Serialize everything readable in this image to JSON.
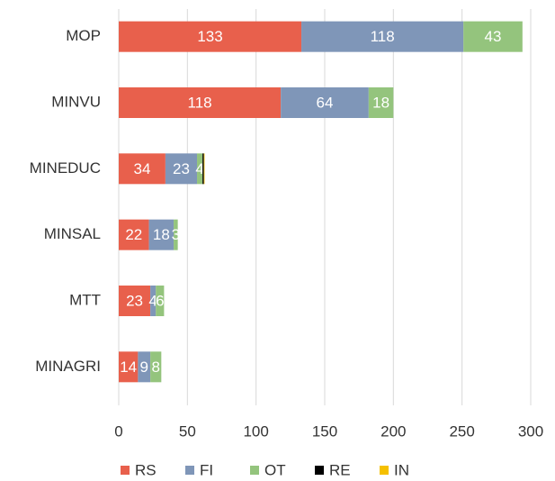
{
  "chart_data": {
    "type": "stacked_barh",
    "categories": [
      "MOP",
      "MINVU",
      "MINEDUC",
      "MINSAL",
      "MTT",
      "MINAGRI"
    ],
    "series": [
      {
        "name": "RS",
        "color": "#e8604c",
        "values": [
          133,
          118,
          34,
          22,
          23,
          14
        ]
      },
      {
        "name": "FI",
        "color": "#7f96b8",
        "values": [
          118,
          64,
          23,
          18,
          4,
          9
        ]
      },
      {
        "name": "OT",
        "color": "#94c47d",
        "values": [
          43,
          18,
          4,
          3,
          6,
          8
        ]
      },
      {
        "name": "RE",
        "color": "#000000",
        "values": [
          0,
          0,
          1,
          0,
          0,
          0
        ],
        "data_labels": false
      },
      {
        "name": "IN",
        "color": "#f5c000",
        "values": [
          0,
          0,
          0.5,
          0,
          0,
          0
        ],
        "data_labels": false
      }
    ],
    "xlim": [
      0,
      300
    ],
    "xticks": [
      0,
      50,
      100,
      150,
      200,
      250,
      300
    ],
    "grid": true,
    "legend": "bottom"
  }
}
